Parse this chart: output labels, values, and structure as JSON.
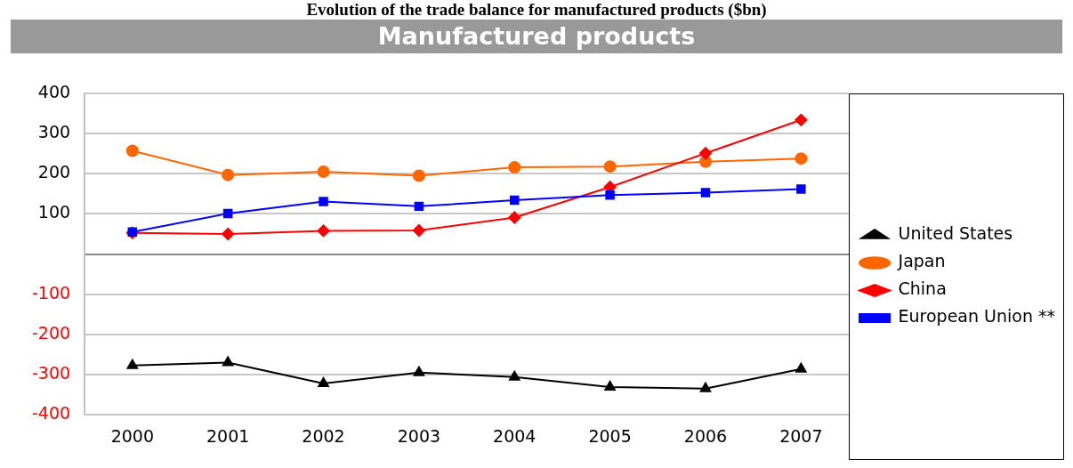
{
  "chart_data": {
    "type": "line",
    "title": "Evolution of the trade balance for manufactured products ($bn)",
    "subtitle": "Manufactured products",
    "categories": [
      "2000",
      "2001",
      "2002",
      "2003",
      "2004",
      "2005",
      "2006",
      "2007"
    ],
    "series": [
      {
        "name": "United States",
        "color": "#000000",
        "marker": "triangle",
        "values": [
          -277,
          -270,
          -322,
          -295,
          -306,
          -331,
          -335,
          -286
        ]
      },
      {
        "name": "Japan",
        "color": "#ff6600",
        "marker": "circle",
        "values": [
          257,
          197,
          205,
          195,
          216,
          218,
          230,
          238
        ]
      },
      {
        "name": "China",
        "color": "#ff0000",
        "marker": "diamond",
        "values": [
          53,
          50,
          58,
          59,
          91,
          167,
          251,
          334
        ]
      },
      {
        "name": "European Union **",
        "color": "#0000ff",
        "marker": "square",
        "values": [
          55,
          101,
          131,
          119,
          134,
          147,
          153,
          162
        ]
      }
    ],
    "ylim": [
      -400,
      400
    ],
    "yticks": [
      -400,
      -300,
      -200,
      -100,
      {
        "value": 0,
        "label": null
      },
      100,
      200,
      300,
      400
    ],
    "grid": "y",
    "legend": "right",
    "line_style": "solid"
  }
}
